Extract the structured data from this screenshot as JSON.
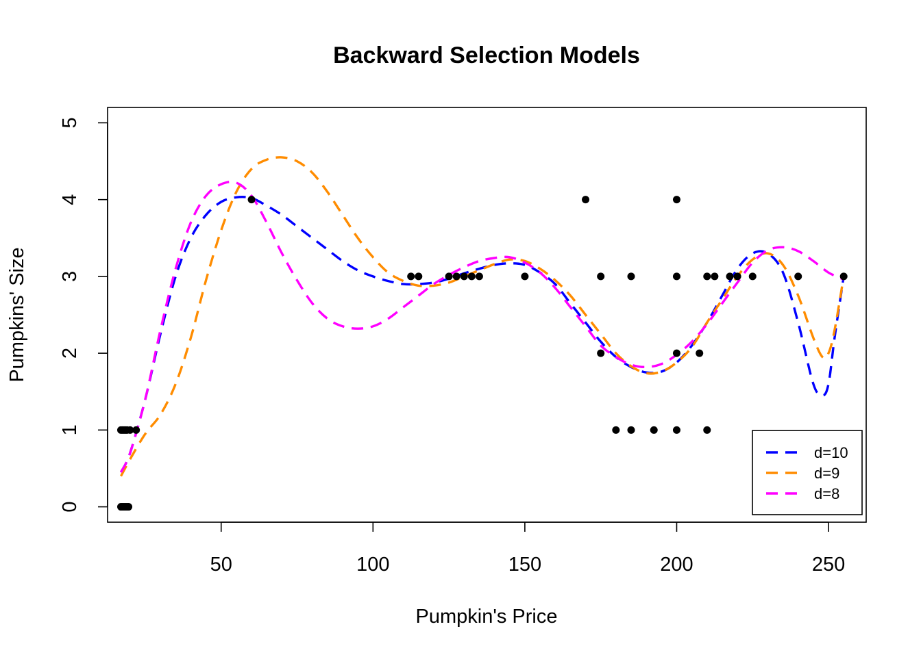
{
  "chart_data": {
    "type": "scatter",
    "title": "Backward Selection Models",
    "xlabel": "Pumpkin's Price",
    "ylabel": "Pumpkins' Size",
    "xlim": [
      12.6,
      262.4
    ],
    "ylim": [
      -0.2,
      5.2
    ],
    "xticks": [
      50,
      100,
      150,
      200,
      250
    ],
    "yticks": [
      0,
      1,
      2,
      3,
      4,
      5
    ],
    "grid": false,
    "legend_position": "bottom-right",
    "points": [
      {
        "x": 17,
        "y": 1
      },
      {
        "x": 17.5,
        "y": 1
      },
      {
        "x": 18,
        "y": 1
      },
      {
        "x": 18.5,
        "y": 1
      },
      {
        "x": 19,
        "y": 1
      },
      {
        "x": 20,
        "y": 1
      },
      {
        "x": 22,
        "y": 1
      },
      {
        "x": 17,
        "y": 0
      },
      {
        "x": 17.5,
        "y": 0
      },
      {
        "x": 18,
        "y": 0
      },
      {
        "x": 18.5,
        "y": 0
      },
      {
        "x": 19,
        "y": 0
      },
      {
        "x": 19.5,
        "y": 0
      },
      {
        "x": 60,
        "y": 4
      },
      {
        "x": 112.5,
        "y": 3
      },
      {
        "x": 115,
        "y": 3
      },
      {
        "x": 125,
        "y": 3
      },
      {
        "x": 127.5,
        "y": 3
      },
      {
        "x": 130,
        "y": 3
      },
      {
        "x": 132.5,
        "y": 3
      },
      {
        "x": 135,
        "y": 3
      },
      {
        "x": 150,
        "y": 3
      },
      {
        "x": 170,
        "y": 4
      },
      {
        "x": 175,
        "y": 3
      },
      {
        "x": 175,
        "y": 2
      },
      {
        "x": 180,
        "y": 1
      },
      {
        "x": 185,
        "y": 3
      },
      {
        "x": 185,
        "y": 1
      },
      {
        "x": 192.5,
        "y": 1
      },
      {
        "x": 200,
        "y": 4
      },
      {
        "x": 200,
        "y": 3
      },
      {
        "x": 200,
        "y": 2
      },
      {
        "x": 200,
        "y": 1
      },
      {
        "x": 207.5,
        "y": 2
      },
      {
        "x": 210,
        "y": 3
      },
      {
        "x": 210,
        "y": 1
      },
      {
        "x": 212.5,
        "y": 3
      },
      {
        "x": 217.5,
        "y": 3
      },
      {
        "x": 220,
        "y": 3
      },
      {
        "x": 225,
        "y": 3
      },
      {
        "x": 240,
        "y": 3
      },
      {
        "x": 255,
        "y": 3
      }
    ],
    "series": [
      {
        "name": "d=10",
        "color": "#0000ff",
        "x": [
          17,
          20,
          25,
          30,
          35,
          40,
          45,
          50,
          55,
          60,
          65,
          70,
          75,
          80,
          85,
          90,
          95,
          100,
          105,
          110,
          115,
          120,
          125,
          130,
          135,
          140,
          145,
          150,
          155,
          160,
          165,
          170,
          175,
          180,
          185,
          190,
          195,
          200,
          205,
          210,
          215,
          220,
          225,
          230,
          235,
          240,
          245,
          248,
          250,
          252,
          255
        ],
        "y": [
          0.45,
          0.7,
          1.4,
          2.25,
          3.0,
          3.5,
          3.8,
          3.97,
          4.03,
          4.02,
          3.92,
          3.8,
          3.65,
          3.5,
          3.35,
          3.2,
          3.08,
          3.0,
          2.94,
          2.9,
          2.9,
          2.92,
          2.97,
          3.04,
          3.1,
          3.15,
          3.17,
          3.15,
          3.05,
          2.9,
          2.65,
          2.4,
          2.15,
          1.95,
          1.82,
          1.75,
          1.76,
          1.88,
          2.1,
          2.4,
          2.75,
          3.1,
          3.3,
          3.3,
          3.05,
          2.4,
          1.6,
          1.45,
          1.6,
          2.2,
          3.0
        ]
      },
      {
        "name": "d=9",
        "color": "#ff8c00",
        "x": [
          17,
          20,
          25,
          30,
          35,
          40,
          45,
          50,
          55,
          60,
          65,
          70,
          75,
          80,
          85,
          90,
          95,
          100,
          105,
          110,
          115,
          120,
          125,
          130,
          135,
          140,
          145,
          150,
          155,
          160,
          165,
          170,
          175,
          180,
          185,
          190,
          195,
          200,
          205,
          210,
          215,
          220,
          225,
          230,
          235,
          240,
          245,
          248,
          250,
          252,
          255
        ],
        "y": [
          0.4,
          0.62,
          0.95,
          1.2,
          1.6,
          2.2,
          2.95,
          3.6,
          4.1,
          4.4,
          4.52,
          4.55,
          4.5,
          4.35,
          4.1,
          3.8,
          3.5,
          3.25,
          3.05,
          2.94,
          2.88,
          2.88,
          2.92,
          3.0,
          3.08,
          3.16,
          3.22,
          3.2,
          3.1,
          2.95,
          2.75,
          2.5,
          2.25,
          2.0,
          1.83,
          1.74,
          1.76,
          1.88,
          2.08,
          2.4,
          2.7,
          3.0,
          3.22,
          3.3,
          3.15,
          2.75,
          2.2,
          1.95,
          2.0,
          2.3,
          3.0
        ]
      },
      {
        "name": "d=8",
        "color": "#ff00ff",
        "x": [
          17,
          20,
          25,
          30,
          35,
          40,
          45,
          50,
          55,
          60,
          65,
          70,
          75,
          80,
          85,
          90,
          95,
          100,
          105,
          110,
          115,
          120,
          125,
          130,
          135,
          140,
          145,
          150,
          155,
          160,
          165,
          170,
          175,
          180,
          185,
          190,
          195,
          200,
          205,
          210,
          215,
          220,
          225,
          230,
          235,
          240,
          245,
          250,
          255
        ],
        "y": [
          0.45,
          0.7,
          1.4,
          2.3,
          3.1,
          3.7,
          4.05,
          4.2,
          4.22,
          4.05,
          3.7,
          3.3,
          2.95,
          2.65,
          2.45,
          2.35,
          2.32,
          2.35,
          2.45,
          2.6,
          2.75,
          2.9,
          3.02,
          3.12,
          3.2,
          3.24,
          3.25,
          3.18,
          3.05,
          2.85,
          2.6,
          2.35,
          2.1,
          1.95,
          1.85,
          1.82,
          1.86,
          1.98,
          2.15,
          2.38,
          2.65,
          2.92,
          3.18,
          3.34,
          3.38,
          3.33,
          3.2,
          3.05,
          2.96
        ]
      }
    ]
  }
}
